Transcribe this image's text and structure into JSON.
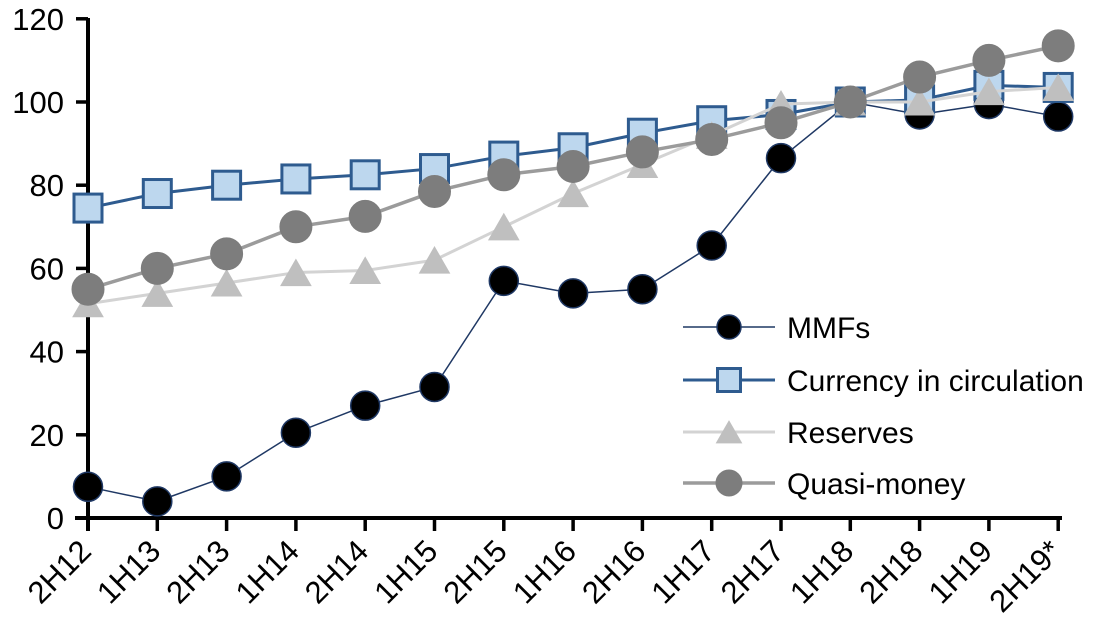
{
  "chart_data": {
    "type": "line",
    "title": "",
    "xlabel": "",
    "ylabel": "",
    "ylim": [
      0,
      120
    ],
    "yticks": [
      0,
      20,
      40,
      60,
      80,
      100,
      120
    ],
    "grid": false,
    "legend_position": "inside-right",
    "axis_color": "#000000",
    "categories": [
      "2H12",
      "1H13",
      "2H13",
      "1H14",
      "2H14",
      "1H15",
      "2H15",
      "1H16",
      "2H16",
      "1H17",
      "2H17",
      "1H18",
      "2H18",
      "1H19",
      "2H19*"
    ],
    "series": [
      {
        "name": "MMFs",
        "marker": "circle",
        "marker_fill": "#000000",
        "marker_stroke": "#1F3864",
        "marker_stroke_width": 1.5,
        "marker_size": 29,
        "line_color": "#1F3864",
        "line_width": 1.5,
        "values": [
          7.5,
          4,
          10,
          20.5,
          27,
          31.5,
          57,
          54,
          55,
          65.5,
          86.5,
          100,
          97,
          99.5,
          96.5
        ]
      },
      {
        "name": "Currency in circulation",
        "marker": "square",
        "marker_fill": "#BDD7EE",
        "marker_stroke": "#2E5B8F",
        "marker_stroke_width": 3,
        "marker_size": 28,
        "line_color": "#2E5B8F",
        "line_width": 3,
        "values": [
          74.5,
          78,
          80,
          81.5,
          82.5,
          84,
          87,
          89,
          92.5,
          95.5,
          97,
          100,
          100.5,
          104,
          103.5
        ]
      },
      {
        "name": "Reserves",
        "marker": "triangle",
        "marker_fill": "#BFBFBF",
        "marker_stroke": "#BFBFBF",
        "marker_stroke_width": 1,
        "marker_size": 30,
        "line_color": "#D3D3D3",
        "line_width": 3,
        "values": [
          51.5,
          54,
          56.5,
          59,
          59.5,
          62,
          70,
          78,
          85,
          92,
          99.5,
          100,
          100,
          102.5,
          103.5
        ]
      },
      {
        "name": "Quasi-money",
        "marker": "circle",
        "marker_fill": "#7D7D7D",
        "marker_stroke": "#7D7D7D",
        "marker_stroke_width": 1,
        "marker_size": 32,
        "line_color": "#9B9B9B",
        "line_width": 3.5,
        "values": [
          55,
          60,
          63.5,
          70,
          72.5,
          78.5,
          82.5,
          84.5,
          88,
          91,
          95,
          100,
          106,
          110,
          113.5
        ]
      }
    ]
  }
}
